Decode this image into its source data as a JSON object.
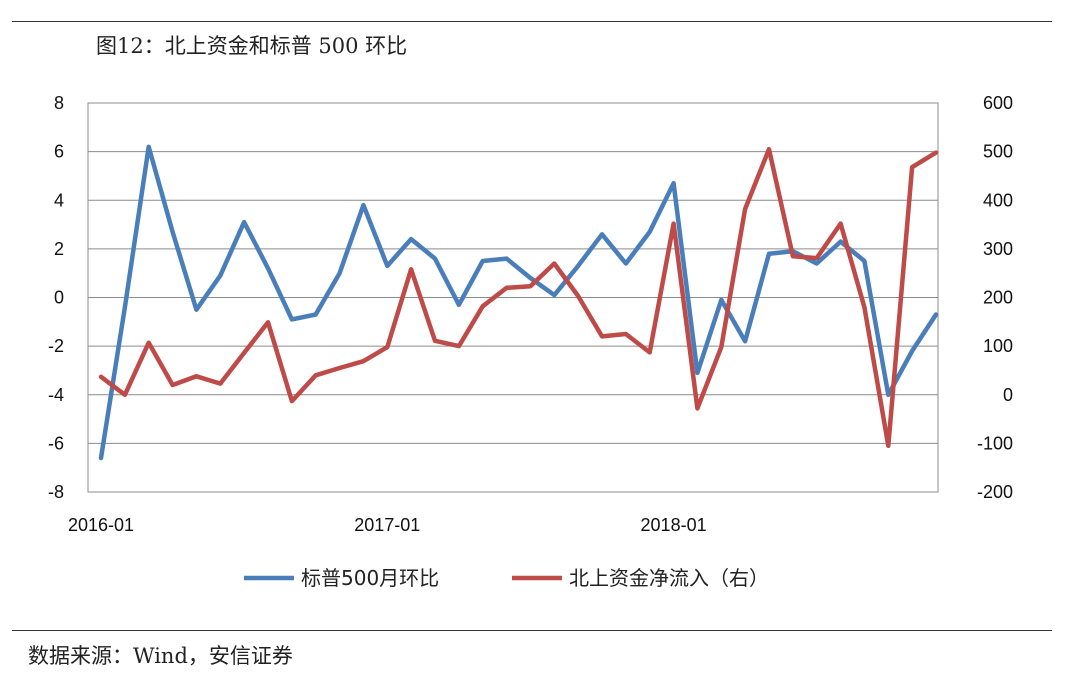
{
  "figure_title": "图12：北上资金和标普 500 环比",
  "source_note": "数据来源：Wind，安信证券",
  "colors": {
    "series_0": "#4A7EBB",
    "series_1": "#BE4B48",
    "grid": "#8c8c8c"
  },
  "chart_data": {
    "type": "line",
    "title": "",
    "x": [
      "2016-01",
      "2016-02",
      "2016-03",
      "2016-04",
      "2016-05",
      "2016-06",
      "2016-07",
      "2016-08",
      "2016-09",
      "2016-10",
      "2016-11",
      "2016-12",
      "2017-01",
      "2017-02",
      "2017-03",
      "2017-04",
      "2017-05",
      "2017-06",
      "2017-07",
      "2017-08",
      "2017-09",
      "2017-10",
      "2017-11",
      "2017-12",
      "2018-01",
      "2018-02",
      "2018-03",
      "2018-04",
      "2018-05",
      "2018-06",
      "2018-07",
      "2018-08",
      "2018-09",
      "2018-10",
      "2018-11",
      "2018-12"
    ],
    "x_tick_labels": [
      "2016-01",
      "2017-01",
      "2018-01"
    ],
    "y_left": {
      "lim": [
        -8,
        8
      ],
      "ticks": [
        "8",
        "6",
        "4",
        "2",
        "0",
        "-2",
        "-4",
        "-6",
        "-8"
      ]
    },
    "y_right": {
      "lim": [
        -200,
        600
      ],
      "ticks": [
        "600",
        "500",
        "400",
        "300",
        "200",
        "100",
        "0",
        "-100",
        "-200"
      ]
    },
    "grid": true,
    "legend_position": "bottom",
    "series": [
      {
        "name": "标普500月环比",
        "axis": "left",
        "values": [
          -6.6,
          -0.4,
          6.2,
          2.7,
          -0.5,
          0.9,
          3.1,
          1.2,
          -0.9,
          -0.7,
          1.0,
          3.8,
          1.3,
          2.4,
          1.6,
          -0.3,
          1.5,
          1.6,
          0.8,
          0.1,
          1.3,
          2.6,
          1.4,
          2.7,
          4.7,
          -3.1,
          -0.1,
          -1.8,
          1.8,
          1.9,
          1.4,
          2.3,
          1.5,
          -4.0,
          -2.2,
          -0.7
        ]
      },
      {
        "name": "北上资金净流入（右）",
        "axis": "right",
        "values": [
          37,
          0,
          107,
          20,
          38,
          23,
          86,
          149,
          -13,
          40,
          55,
          69,
          98,
          258,
          111,
          100,
          182,
          220,
          223,
          270,
          203,
          120,
          125,
          87,
          352,
          -28,
          98,
          382,
          505,
          285,
          281,
          352,
          180,
          -105,
          468,
          498
        ]
      }
    ]
  }
}
